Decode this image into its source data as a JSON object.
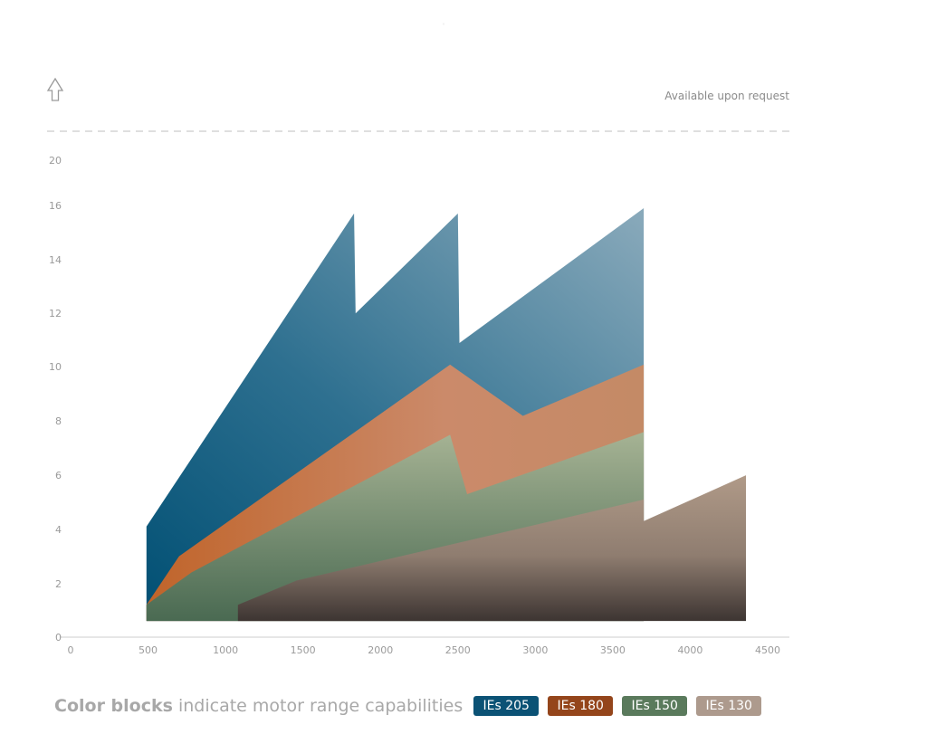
{
  "chart_data": {
    "type": "area",
    "title": "",
    "xlabel": "",
    "ylabel": "",
    "annotation": "Available upon request",
    "xlim": [
      0,
      4600
    ],
    "ylim": [
      0,
      20.5
    ],
    "x_ticks": [
      0,
      500,
      1000,
      1500,
      2000,
      2500,
      3000,
      3500,
      4000,
      4500
    ],
    "y_ticks": [
      0,
      2,
      4,
      6,
      8,
      10,
      12,
      14,
      16,
      20
    ],
    "series": [
      {
        "name": "IEs 205",
        "color": "#0b5a7c",
        "outline": [
          [
            490,
            0.6
          ],
          [
            490,
            4.1
          ],
          [
            1830,
            15.7
          ],
          [
            1840,
            12.0
          ],
          [
            2500,
            15.7
          ],
          [
            2510,
            10.9
          ],
          [
            3700,
            15.9
          ],
          [
            3700,
            0.6
          ]
        ]
      },
      {
        "name": "IEs 180",
        "color": "#c8703d",
        "outline": [
          [
            490,
            0.6
          ],
          [
            490,
            1.2
          ],
          [
            700,
            3.0
          ],
          [
            2450,
            10.1
          ],
          [
            2920,
            8.2
          ],
          [
            3700,
            10.1
          ],
          [
            3700,
            0.6
          ]
        ]
      },
      {
        "name": "IEs 150",
        "color": "#5e7c62",
        "outline": [
          [
            490,
            0.6
          ],
          [
            490,
            1.2
          ],
          [
            780,
            2.4
          ],
          [
            2450,
            7.5
          ],
          [
            2560,
            5.3
          ],
          [
            3700,
            7.6
          ],
          [
            3700,
            0.6
          ]
        ]
      },
      {
        "name": "IEs 130",
        "color": "#a38e7e",
        "outline": [
          [
            1080,
            0.6
          ],
          [
            1080,
            1.2
          ],
          [
            1460,
            2.1
          ],
          [
            3700,
            5.1
          ],
          [
            3700,
            4.3
          ],
          [
            4360,
            6.0
          ],
          [
            4360,
            0.6
          ],
          [
            3700,
            0.6
          ],
          [
            3700,
            0.6
          ]
        ]
      }
    ]
  },
  "legend": {
    "caption_bold": "Color blocks",
    "caption_rest": " indicate motor range capabilities",
    "items": [
      {
        "label": "IEs 205",
        "color": "#0b5275"
      },
      {
        "label": "IEs 180",
        "color": "#94451b"
      },
      {
        "label": "IEs 150",
        "color": "#5a7a5c"
      },
      {
        "label": "IEs 130",
        "color": "#ad9a8d"
      }
    ]
  }
}
